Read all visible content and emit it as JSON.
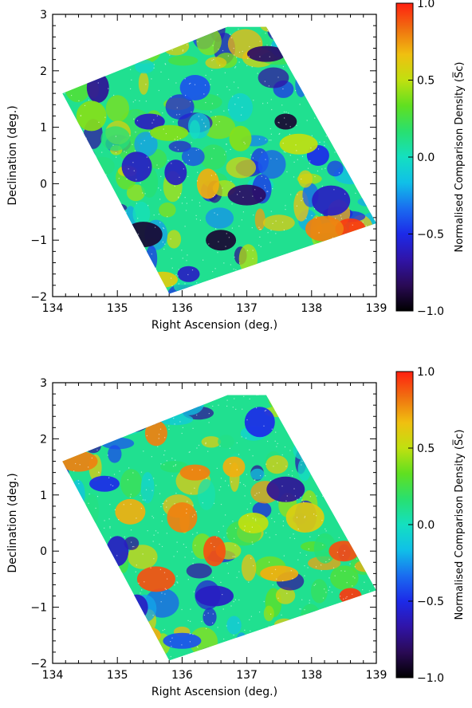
{
  "chart_data": [
    {
      "type": "heatmap",
      "xlabel": "Right Ascension (deg.)",
      "ylabel": "Declination (deg.)",
      "xlim": [
        134,
        139
      ],
      "ylim": [
        -2,
        3
      ],
      "xticks": [
        134,
        135,
        136,
        137,
        138,
        139
      ],
      "xtick_labels": [
        "134",
        "135",
        "136",
        "137",
        "138",
        "139"
      ],
      "yticks": [
        -2,
        -1,
        0,
        1,
        2,
        3
      ],
      "ytick_labels": [
        "−2",
        "−1",
        "0",
        "1",
        "2",
        "3"
      ],
      "footprint_corners": [
        [
          136.7,
          2.78
        ],
        [
          137.3,
          2.78
        ],
        [
          139.0,
          -0.7
        ],
        [
          135.8,
          -1.95
        ],
        [
          134.15,
          1.6
        ]
      ],
      "colorbar": {
        "label": "Normalised Comparison Density (S̅c)",
        "range": [
          -1.0,
          1.0
        ],
        "ticks": [
          1.0,
          0.5,
          0.0,
          -0.5,
          -1.0
        ],
        "tick_labels": [
          "1.0",
          "0.5",
          "0.0",
          "−0.5",
          "−1.0"
        ]
      },
      "colormap": [
        "#000000",
        "#2a0a55",
        "#3014a8",
        "#1c2ae8",
        "#1a6cf0",
        "#10c0e8",
        "#14e0c0",
        "#28e070",
        "#60e020",
        "#c0e010",
        "#f0c010",
        "#f07010",
        "#ff2010"
      ],
      "features": [
        {
          "ra": 137.6,
          "dec": 1.1,
          "value": -0.9
        },
        {
          "ra": 136.6,
          "dec": -1.0,
          "value": -0.9
        },
        {
          "ra": 135.4,
          "dec": -0.9,
          "value": -0.9
        },
        {
          "ra": 134.7,
          "dec": 1.7,
          "value": -0.7
        },
        {
          "ra": 135.5,
          "dec": 1.1,
          "value": -0.6
        },
        {
          "ra": 137.0,
          "dec": -0.2,
          "value": -0.8
        },
        {
          "ra": 135.9,
          "dec": 0.2,
          "value": -0.6
        },
        {
          "ra": 135.3,
          "dec": 0.3,
          "value": -0.6
        },
        {
          "ra": 137.3,
          "dec": 2.3,
          "value": -0.8
        },
        {
          "ra": 138.1,
          "dec": 0.5,
          "value": -0.5
        },
        {
          "ra": 136.2,
          "dec": 1.7,
          "value": -0.4
        },
        {
          "ra": 138.3,
          "dec": -0.3,
          "value": -0.6
        },
        {
          "ra": 136.1,
          "dec": -1.6,
          "value": -0.6
        },
        {
          "ra": 138.6,
          "dec": -0.8,
          "value": 0.95
        },
        {
          "ra": 138.2,
          "dec": -0.8,
          "value": 0.8
        },
        {
          "ra": 136.4,
          "dec": 0.0,
          "value": 0.7
        },
        {
          "ra": 135.7,
          "dec": -1.7,
          "value": 0.6
        },
        {
          "ra": 137.8,
          "dec": 0.7,
          "value": 0.5
        },
        {
          "ra": 136.9,
          "dec": 0.8,
          "value": 0.4
        },
        {
          "ra": 134.6,
          "dec": 1.2,
          "value": 0.4
        },
        {
          "ra": 135.8,
          "dec": 0.9,
          "value": 0.4
        }
      ]
    },
    {
      "type": "heatmap",
      "xlabel": "Right Ascension (deg.)",
      "ylabel": "Declination (deg.)",
      "xlim": [
        134,
        139
      ],
      "ylim": [
        -2,
        3
      ],
      "xticks": [
        134,
        135,
        136,
        137,
        138,
        139
      ],
      "xtick_labels": [
        "134",
        "135",
        "136",
        "137",
        "138",
        "139"
      ],
      "yticks": [
        -2,
        -1,
        0,
        1,
        2,
        3
      ],
      "ytick_labels": [
        "−2",
        "−1",
        "0",
        "1",
        "2",
        "3"
      ],
      "footprint_corners": [
        [
          136.7,
          2.78
        ],
        [
          137.3,
          2.78
        ],
        [
          139.0,
          -0.7
        ],
        [
          135.8,
          -1.95
        ],
        [
          134.15,
          1.6
        ]
      ],
      "colorbar": {
        "label": "Normalised Comparison Density (S̅c)",
        "range": [
          -1.0,
          1.0
        ],
        "ticks": [
          1.0,
          0.5,
          0.0,
          -0.5,
          -1.0
        ],
        "tick_labels": [
          "1.0",
          "0.5",
          "0.0",
          "−0.5",
          "−1.0"
        ]
      },
      "colormap": [
        "#000000",
        "#2a0a55",
        "#3014a8",
        "#1c2ae8",
        "#1a6cf0",
        "#10c0e8",
        "#14e0c0",
        "#28e070",
        "#60e020",
        "#c0e010",
        "#f0c010",
        "#f07010",
        "#ff2010"
      ],
      "features": [
        {
          "ra": 138.6,
          "dec": -0.8,
          "value": 0.95
        },
        {
          "ra": 138.5,
          "dec": 0.0,
          "value": 0.9
        },
        {
          "ra": 135.6,
          "dec": -0.5,
          "value": 0.9
        },
        {
          "ra": 136.5,
          "dec": 0.0,
          "value": 0.9
        },
        {
          "ra": 136.2,
          "dec": 1.4,
          "value": 0.8
        },
        {
          "ra": 134.4,
          "dec": 1.6,
          "value": 0.8
        },
        {
          "ra": 135.6,
          "dec": 2.1,
          "value": 0.8
        },
        {
          "ra": 136.0,
          "dec": 0.6,
          "value": 0.8
        },
        {
          "ra": 137.5,
          "dec": -0.4,
          "value": 0.7
        },
        {
          "ra": 136.8,
          "dec": 1.5,
          "value": 0.7
        },
        {
          "ra": 135.2,
          "dec": 0.7,
          "value": 0.7
        },
        {
          "ra": 137.9,
          "dec": 0.6,
          "value": 0.6
        },
        {
          "ra": 135.5,
          "dec": -1.5,
          "value": 0.7
        },
        {
          "ra": 137.1,
          "dec": 0.5,
          "value": 0.5
        },
        {
          "ra": 137.6,
          "dec": 1.1,
          "value": -0.7
        },
        {
          "ra": 135.0,
          "dec": 0.0,
          "value": -0.6
        },
        {
          "ra": 134.8,
          "dec": 1.2,
          "value": -0.5
        },
        {
          "ra": 136.5,
          "dec": -0.8,
          "value": -0.6
        },
        {
          "ra": 135.3,
          "dec": -1.0,
          "value": -0.6
        },
        {
          "ra": 137.2,
          "dec": 2.3,
          "value": -0.5
        },
        {
          "ra": 136.0,
          "dec": -1.6,
          "value": -0.4
        }
      ]
    }
  ]
}
